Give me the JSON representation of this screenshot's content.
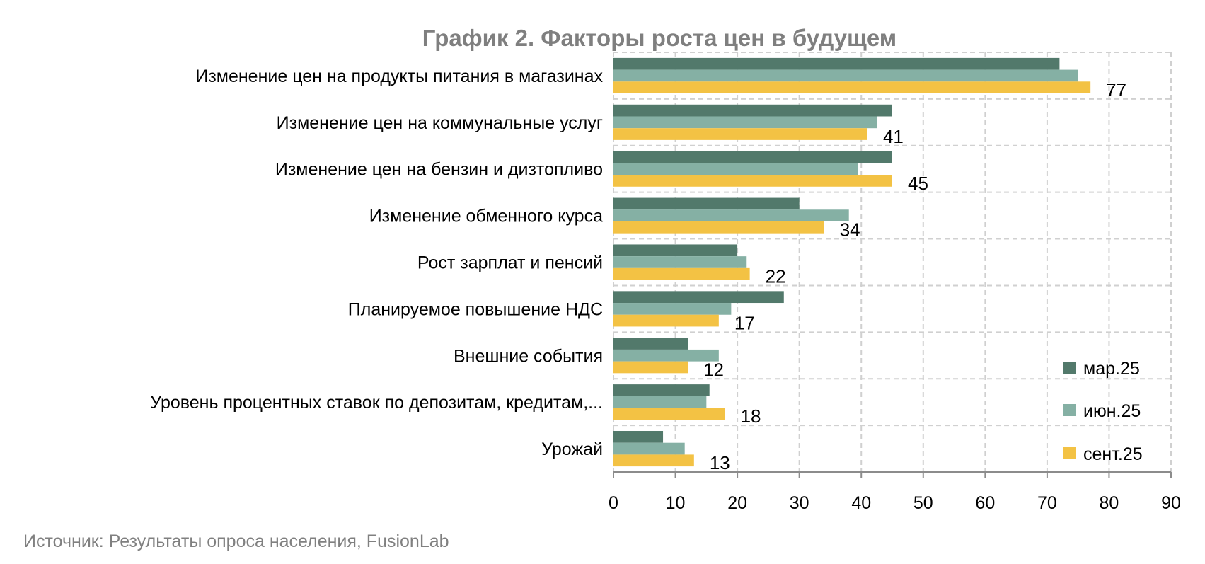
{
  "chart_data": {
    "type": "bar",
    "orientation": "horizontal",
    "title": "График 2. Факторы роста цен в будущем",
    "categories": [
      "Изменение цен на продукты питания в магазинах",
      "Изменение цен на коммунальные услуг",
      "Изменение цен на бензин и дизтопливо",
      "Изменение обменного курса",
      "Рост зарплат и пенсий",
      "Планируемое повышение НДС",
      "Внешние события",
      "Уровень процентных ставок по депозитам, кредитам,...",
      "Урожай"
    ],
    "series": [
      {
        "name": "мар.25",
        "color": "#52796b",
        "values": [
          72,
          45,
          45,
          30,
          20,
          27.5,
          12,
          15.5,
          8
        ]
      },
      {
        "name": "июн.25",
        "color": "#85b0a4",
        "values": [
          75,
          42.5,
          39.5,
          38,
          21.5,
          19,
          17,
          15,
          11.5
        ]
      },
      {
        "name": "сент.25",
        "color": "#f3c244",
        "values": [
          77,
          41,
          45,
          34,
          22,
          17,
          12,
          18,
          13
        ]
      }
    ],
    "data_labels": {
      "series": "сент.25",
      "values": [
        "77",
        "41",
        "45",
        "34",
        "22",
        "17",
        "12",
        "18",
        "13"
      ]
    },
    "xlim": [
      0,
      90
    ],
    "xticks": [
      "0",
      "10",
      "20",
      "30",
      "40",
      "50",
      "60",
      "70",
      "80",
      "90"
    ],
    "xlabel": "",
    "ylabel": "",
    "grid": true,
    "legend_position": "bottom-right",
    "source": "Источник: Результаты опроса населения, FusionLab"
  }
}
